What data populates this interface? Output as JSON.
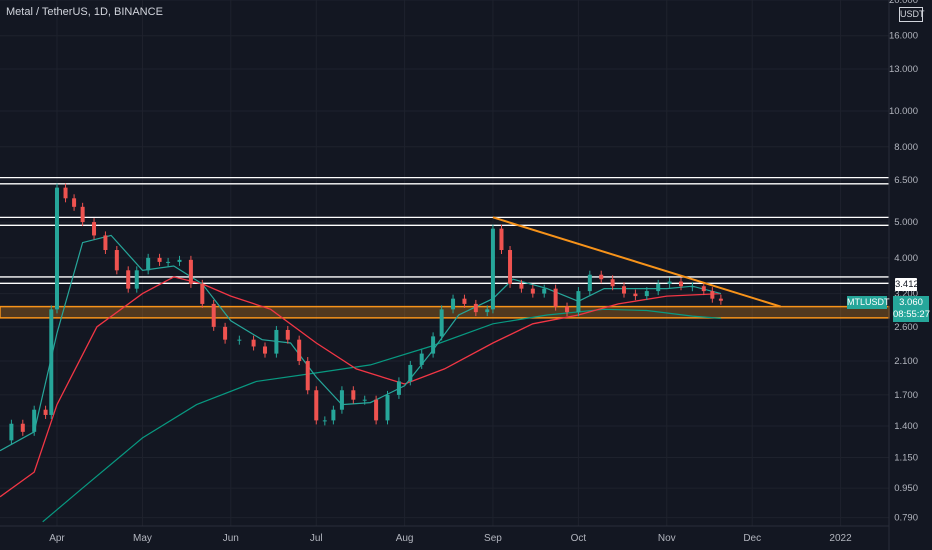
{
  "header": {
    "title": "Metal / TetherUS, 1D, BINANCE",
    "unit_badge": "USDT"
  },
  "price_panel": {
    "symbol_tag": "MTLUSDT",
    "last_price": "3.060",
    "countdown": "08:55:27",
    "level_label": "3.412"
  },
  "colors": {
    "background": "#131722",
    "candle_up": "#26a69a",
    "candle_down": "#ef5350",
    "ma_fast": "#26a69a",
    "ma_slow": "#f23645",
    "ma_long": "#089981",
    "trendline": "#f7931a",
    "horizontal_levels": "#ffffff",
    "support_zone": "#f7931a"
  },
  "chart_data": {
    "type": "line",
    "title": "Metal / TetherUS, 1D, BINANCE",
    "y_scale": "log",
    "ylim": [
      0.75,
      20.0
    ],
    "y_ticks": [
      {
        "value": 20.0,
        "label": "20.000"
      },
      {
        "value": 16.0,
        "label": "16.000"
      },
      {
        "value": 13.0,
        "label": "13.000"
      },
      {
        "value": 10.0,
        "label": "10.000"
      },
      {
        "value": 8.0,
        "label": "8.000"
      },
      {
        "value": 6.5,
        "label": "6.500"
      },
      {
        "value": 5.0,
        "label": "5.000"
      },
      {
        "value": 4.0,
        "label": "4.000"
      },
      {
        "value": 3.2,
        "label": "3.200"
      },
      {
        "value": 2.6,
        "label": "2.600"
      },
      {
        "value": 2.1,
        "label": "2.100"
      },
      {
        "value": 1.7,
        "label": "1.700"
      },
      {
        "value": 1.4,
        "label": "1.400"
      },
      {
        "value": 1.15,
        "label": "1.150"
      },
      {
        "value": 0.95,
        "label": "0.950"
      },
      {
        "value": 0.79,
        "label": "0.790"
      }
    ],
    "x_ticks": [
      {
        "date": "2021-04-01",
        "label": "Apr"
      },
      {
        "date": "2021-05-01",
        "label": "May"
      },
      {
        "date": "2021-06-01",
        "label": "Jun"
      },
      {
        "date": "2021-07-01",
        "label": "Jul"
      },
      {
        "date": "2021-08-01",
        "label": "Aug"
      },
      {
        "date": "2021-09-01",
        "label": "Sep"
      },
      {
        "date": "2021-10-01",
        "label": "Oct"
      },
      {
        "date": "2021-11-01",
        "label": "Nov"
      },
      {
        "date": "2021-12-01",
        "label": "Dec"
      },
      {
        "date": "2022-01-01",
        "label": "2022"
      }
    ],
    "xlim": [
      "2021-03-12",
      "2022-01-18"
    ],
    "horizontal_levels": [
      6.6,
      6.35,
      5.15,
      4.9,
      3.55,
      3.412
    ],
    "support_zone": [
      2.75,
      2.95
    ],
    "trendline": {
      "from": {
        "date": "2021-09-01",
        "value": 5.15
      },
      "to": {
        "date": "2021-12-11",
        "value": 2.95
      }
    },
    "series": [
      {
        "name": "price",
        "values": [
          [
            "2021-03-12",
            1.28
          ],
          [
            "2021-03-16",
            1.42
          ],
          [
            "2021-03-20",
            1.35
          ],
          [
            "2021-03-24",
            1.55
          ],
          [
            "2021-03-28",
            1.5
          ],
          [
            "2021-03-30",
            2.9
          ],
          [
            "2021-04-01",
            6.2
          ],
          [
            "2021-04-04",
            5.8
          ],
          [
            "2021-04-07",
            5.5
          ],
          [
            "2021-04-10",
            5.0
          ],
          [
            "2021-04-14",
            4.6
          ],
          [
            "2021-04-18",
            4.2
          ],
          [
            "2021-04-22",
            3.7
          ],
          [
            "2021-04-26",
            3.3
          ],
          [
            "2021-04-29",
            3.7
          ],
          [
            "2021-05-03",
            4.0
          ],
          [
            "2021-05-07",
            3.9
          ],
          [
            "2021-05-10",
            3.9
          ],
          [
            "2021-05-14",
            3.95
          ],
          [
            "2021-05-18",
            3.4
          ],
          [
            "2021-05-22",
            3.0
          ],
          [
            "2021-05-26",
            2.6
          ],
          [
            "2021-05-30",
            2.4
          ],
          [
            "2021-06-04",
            2.4
          ],
          [
            "2021-06-09",
            2.3
          ],
          [
            "2021-06-13",
            2.2
          ],
          [
            "2021-06-17",
            2.55
          ],
          [
            "2021-06-21",
            2.4
          ],
          [
            "2021-06-25",
            2.1
          ],
          [
            "2021-06-28",
            1.75
          ],
          [
            "2021-07-01",
            1.45
          ],
          [
            "2021-07-04",
            1.45
          ],
          [
            "2021-07-07",
            1.55
          ],
          [
            "2021-07-10",
            1.75
          ],
          [
            "2021-07-14",
            1.65
          ],
          [
            "2021-07-18",
            1.65
          ],
          [
            "2021-07-22",
            1.45
          ],
          [
            "2021-07-26",
            1.7
          ],
          [
            "2021-07-30",
            1.85
          ],
          [
            "2021-08-03",
            2.05
          ],
          [
            "2021-08-07",
            2.2
          ],
          [
            "2021-08-11",
            2.45
          ],
          [
            "2021-08-14",
            2.9
          ],
          [
            "2021-08-18",
            3.1
          ],
          [
            "2021-08-22",
            3.0
          ],
          [
            "2021-08-26",
            2.85
          ],
          [
            "2021-08-30",
            2.9
          ],
          [
            "2021-09-01",
            4.8
          ],
          [
            "2021-09-04",
            4.2
          ],
          [
            "2021-09-07",
            3.4
          ],
          [
            "2021-09-11",
            3.3
          ],
          [
            "2021-09-15",
            3.2
          ],
          [
            "2021-09-19",
            3.3
          ],
          [
            "2021-09-23",
            2.95
          ],
          [
            "2021-09-27",
            2.85
          ],
          [
            "2021-10-01",
            3.25
          ],
          [
            "2021-10-05",
            3.6
          ],
          [
            "2021-10-09",
            3.5
          ],
          [
            "2021-10-13",
            3.35
          ],
          [
            "2021-10-17",
            3.2
          ],
          [
            "2021-10-21",
            3.15
          ],
          [
            "2021-10-25",
            3.25
          ],
          [
            "2021-10-29",
            3.4
          ],
          [
            "2021-11-02",
            3.45
          ],
          [
            "2021-11-06",
            3.35
          ],
          [
            "2021-11-10",
            3.35
          ],
          [
            "2021-11-14",
            3.25
          ],
          [
            "2021-11-17",
            3.1
          ],
          [
            "2021-11-20",
            3.06
          ]
        ]
      },
      {
        "name": "ma_fast",
        "values": [
          [
            "2021-03-12",
            1.2
          ],
          [
            "2021-03-24",
            1.35
          ],
          [
            "2021-04-01",
            2.5
          ],
          [
            "2021-04-10",
            4.4
          ],
          [
            "2021-04-20",
            4.6
          ],
          [
            "2021-05-01",
            3.7
          ],
          [
            "2021-05-12",
            3.8
          ],
          [
            "2021-05-22",
            3.4
          ],
          [
            "2021-06-01",
            2.7
          ],
          [
            "2021-06-12",
            2.4
          ],
          [
            "2021-06-22",
            2.35
          ],
          [
            "2021-07-01",
            1.9
          ],
          [
            "2021-07-10",
            1.6
          ],
          [
            "2021-07-20",
            1.62
          ],
          [
            "2021-08-01",
            1.8
          ],
          [
            "2021-08-10",
            2.2
          ],
          [
            "2021-08-20",
            2.8
          ],
          [
            "2021-09-01",
            3.1
          ],
          [
            "2021-09-08",
            3.5
          ],
          [
            "2021-09-20",
            3.3
          ],
          [
            "2021-10-01",
            3.05
          ],
          [
            "2021-10-10",
            3.3
          ],
          [
            "2021-10-20",
            3.3
          ],
          [
            "2021-11-01",
            3.3
          ],
          [
            "2021-11-10",
            3.35
          ],
          [
            "2021-11-20",
            3.2
          ]
        ]
      },
      {
        "name": "ma_slow",
        "values": [
          [
            "2021-03-12",
            0.9
          ],
          [
            "2021-03-24",
            1.05
          ],
          [
            "2021-04-01",
            1.6
          ],
          [
            "2021-04-15",
            2.6
          ],
          [
            "2021-05-01",
            3.2
          ],
          [
            "2021-05-12",
            3.55
          ],
          [
            "2021-05-22",
            3.4
          ],
          [
            "2021-06-01",
            3.15
          ],
          [
            "2021-06-15",
            2.9
          ],
          [
            "2021-07-01",
            2.35
          ],
          [
            "2021-07-15",
            2.0
          ],
          [
            "2021-08-01",
            1.82
          ],
          [
            "2021-08-15",
            2.0
          ],
          [
            "2021-09-01",
            2.35
          ],
          [
            "2021-09-15",
            2.65
          ],
          [
            "2021-10-01",
            2.8
          ],
          [
            "2021-10-15",
            3.0
          ],
          [
            "2021-11-01",
            3.15
          ],
          [
            "2021-11-20",
            3.2
          ]
        ]
      },
      {
        "name": "ma_long",
        "values": [
          [
            "2021-03-27",
            0.77
          ],
          [
            "2021-04-10",
            0.95
          ],
          [
            "2021-05-01",
            1.3
          ],
          [
            "2021-05-20",
            1.6
          ],
          [
            "2021-06-10",
            1.85
          ],
          [
            "2021-07-01",
            1.95
          ],
          [
            "2021-07-20",
            2.05
          ],
          [
            "2021-08-10",
            2.3
          ],
          [
            "2021-09-01",
            2.65
          ],
          [
            "2021-09-20",
            2.8
          ],
          [
            "2021-10-10",
            2.9
          ],
          [
            "2021-10-25",
            2.88
          ],
          [
            "2021-11-10",
            2.78
          ],
          [
            "2021-11-20",
            2.74
          ]
        ]
      }
    ]
  }
}
